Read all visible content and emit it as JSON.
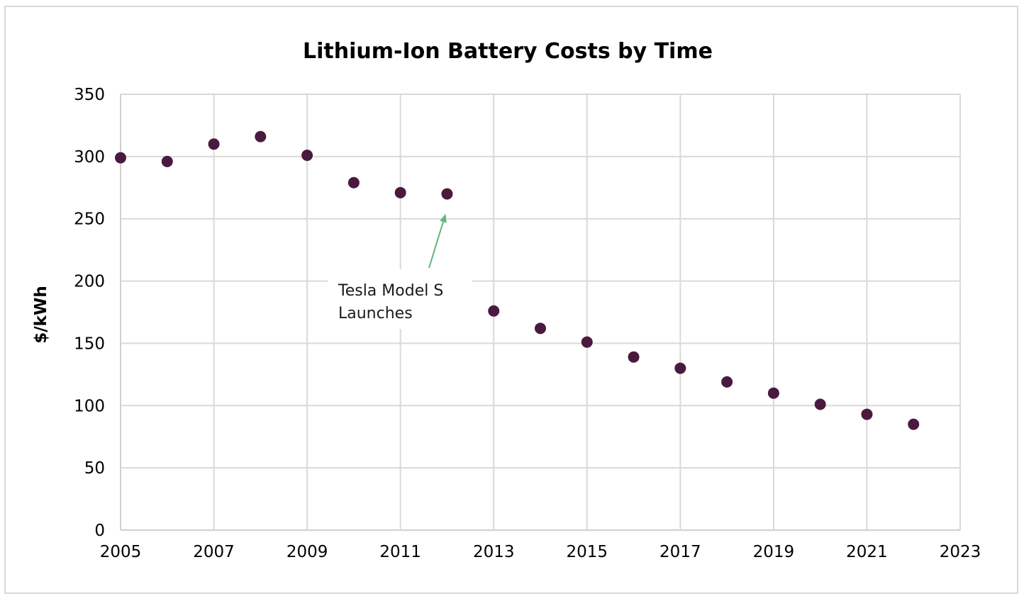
{
  "chart_data": {
    "type": "scatter",
    "title": "Lithium-Ion Battery Costs by Time",
    "xlabel": "",
    "ylabel": "$/kWh",
    "xlim": [
      2005,
      2023
    ],
    "ylim": [
      0,
      350
    ],
    "x_ticks": [
      2005,
      2007,
      2009,
      2011,
      2013,
      2015,
      2017,
      2019,
      2021,
      2023
    ],
    "y_ticks": [
      0,
      50,
      100,
      150,
      200,
      250,
      300,
      350
    ],
    "grid": true,
    "marker_color": "#4a1a3e",
    "arrow_color": "#5cb87a",
    "series": [
      {
        "x": [
          2005,
          2006,
          2007,
          2008,
          2009,
          2010,
          2011,
          2012,
          2013,
          2014,
          2015,
          2016,
          2017,
          2018,
          2019,
          2020,
          2021,
          2022
        ],
        "y": [
          299,
          296,
          310,
          316,
          301,
          279,
          271,
          270,
          176,
          162,
          151,
          139,
          130,
          119,
          110,
          101,
          93,
          85
        ]
      }
    ],
    "annotations": [
      {
        "text_lines": [
          "Tesla Model S",
          "Launches"
        ],
        "points_to": {
          "x": 2012,
          "y": 270
        }
      }
    ]
  }
}
